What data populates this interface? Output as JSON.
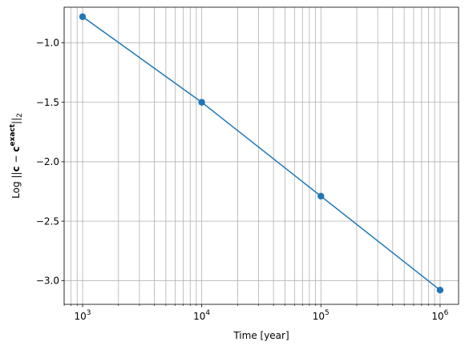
{
  "chart_data": {
    "type": "line",
    "x_scale": "log",
    "x": [
      1000,
      10000,
      100000,
      1000000
    ],
    "series": [
      {
        "values": [
          -0.78,
          -1.5,
          -2.29,
          -3.08
        ],
        "color": "#1f77b4",
        "marker": "circle"
      }
    ],
    "xlabel": "Time [year]",
    "ylabel_parts": {
      "prefix": "Log ||",
      "bold_c": "c",
      "minus": " − ",
      "bold_c2": "c",
      "superscript": "exact",
      "suffix": "||",
      "subscript": "2"
    },
    "xlim": [
      700,
      1430000
    ],
    "ylim": [
      -3.2,
      -0.7
    ],
    "x_ticks": [
      {
        "value": 1000,
        "base": "10",
        "exp": "3"
      },
      {
        "value": 10000,
        "base": "10",
        "exp": "4"
      },
      {
        "value": 100000,
        "base": "10",
        "exp": "5"
      },
      {
        "value": 1000000,
        "base": "10",
        "exp": "6"
      }
    ],
    "y_ticks": [
      {
        "value": -1.0,
        "label": "−1.0"
      },
      {
        "value": -1.5,
        "label": "−1.5"
      },
      {
        "value": -2.0,
        "label": "−2.0"
      },
      {
        "value": -2.5,
        "label": "−2.5"
      },
      {
        "value": -3.0,
        "label": "−3.0"
      }
    ],
    "grid": true,
    "grid_minor": true,
    "grid_color": "#b0b0b0"
  }
}
